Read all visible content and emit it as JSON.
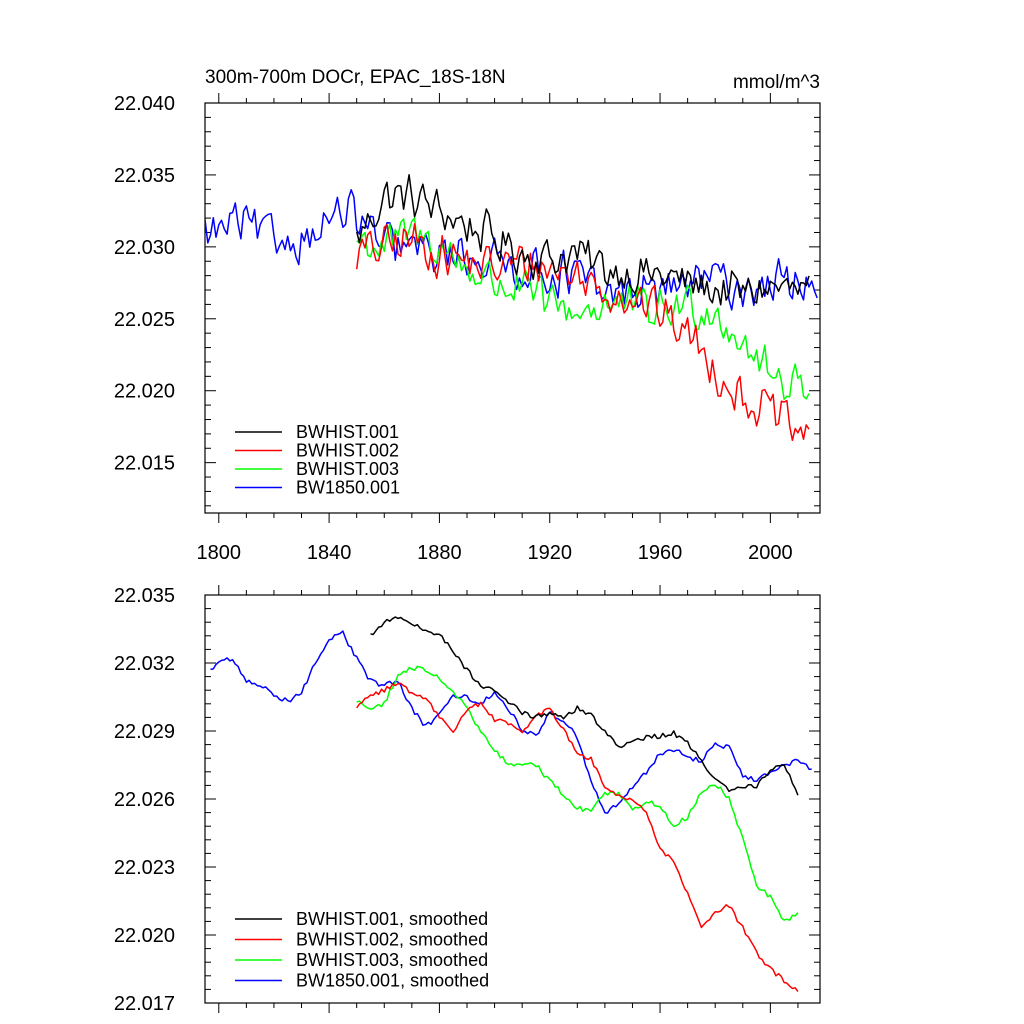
{
  "chart_data": [
    {
      "type": "line",
      "title_left": "300m-700m DOCr, EPAC_18S-18N",
      "title_right": "mmol/m^3",
      "xlim": [
        1795,
        2018
      ],
      "ylim": [
        22.0115,
        22.04
      ],
      "xticks": [
        1800,
        1840,
        1880,
        1920,
        1960,
        2000
      ],
      "yticks": [
        "22.040",
        "22.035",
        "22.030",
        "22.025",
        "22.020",
        "22.015"
      ],
      "legend_position": "lower-left",
      "series": [
        {
          "name": "BWHIST.001",
          "color": "#000000",
          "x_start": 1850,
          "x_end": 2014,
          "points": [
            [
              1850,
              22.0305
            ],
            [
              1860,
              22.0335
            ],
            [
              1870,
              22.0335
            ],
            [
              1880,
              22.0325
            ],
            [
              1890,
              22.0315
            ],
            [
              1900,
              22.0305
            ],
            [
              1910,
              22.0295
            ],
            [
              1920,
              22.0292
            ],
            [
              1930,
              22.0295
            ],
            [
              1940,
              22.0285
            ],
            [
              1950,
              22.0282
            ],
            [
              1960,
              22.028
            ],
            [
              1970,
              22.0275
            ],
            [
              1980,
              22.027
            ],
            [
              1990,
              22.0268
            ],
            [
              2000,
              22.0272
            ],
            [
              2014,
              22.0268
            ]
          ]
        },
        {
          "name": "BWHIST.002",
          "color": "#ff0000",
          "x_start": 1850,
          "x_end": 2014,
          "points": [
            [
              1850,
              22.0295
            ],
            [
              1860,
              22.03
            ],
            [
              1870,
              22.0305
            ],
            [
              1880,
              22.0295
            ],
            [
              1890,
              22.029
            ],
            [
              1900,
              22.0285
            ],
            [
              1910,
              22.029
            ],
            [
              1920,
              22.0285
            ],
            [
              1930,
              22.028
            ],
            [
              1940,
              22.027
            ],
            [
              1950,
              22.0265
            ],
            [
              1960,
              22.0255
            ],
            [
              1970,
              22.024
            ],
            [
              1980,
              22.0215
            ],
            [
              1990,
              22.0195
            ],
            [
              2000,
              22.0185
            ],
            [
              2014,
              22.0165
            ]
          ]
        },
        {
          "name": "BWHIST.003",
          "color": "#00ff00",
          "x_start": 1850,
          "x_end": 2014,
          "points": [
            [
              1850,
              22.0305
            ],
            [
              1860,
              22.03
            ],
            [
              1870,
              22.031
            ],
            [
              1880,
              22.03
            ],
            [
              1890,
              22.0285
            ],
            [
              1900,
              22.0275
            ],
            [
              1910,
              22.027
            ],
            [
              1920,
              22.026
            ],
            [
              1930,
              22.0255
            ],
            [
              1940,
              22.026
            ],
            [
              1950,
              22.0258
            ],
            [
              1960,
              22.0255
            ],
            [
              1970,
              22.026
            ],
            [
              1980,
              22.0255
            ],
            [
              1990,
              22.0235
            ],
            [
              2000,
              22.021
            ],
            [
              2014,
              22.0205
            ]
          ]
        },
        {
          "name": "BW1850.001",
          "color": "#0000ff",
          "x_start": 1795,
          "x_end": 2017,
          "points": [
            [
              1795,
              22.031
            ],
            [
              1800,
              22.031
            ],
            [
              1805,
              22.0318
            ],
            [
              1810,
              22.0315
            ],
            [
              1820,
              22.0305
            ],
            [
              1830,
              22.0305
            ],
            [
              1840,
              22.0318
            ],
            [
              1845,
              22.0325
            ],
            [
              1850,
              22.032
            ],
            [
              1860,
              22.03
            ],
            [
              1870,
              22.03
            ],
            [
              1880,
              22.0295
            ],
            [
              1890,
              22.0295
            ],
            [
              1900,
              22.029
            ],
            [
              1910,
              22.0285
            ],
            [
              1920,
              22.0282
            ],
            [
              1930,
              22.028
            ],
            [
              1940,
              22.0265
            ],
            [
              1950,
              22.027
            ],
            [
              1960,
              22.027
            ],
            [
              1970,
              22.0275
            ],
            [
              1980,
              22.0278
            ],
            [
              1990,
              22.027
            ],
            [
              2000,
              22.0275
            ],
            [
              2017,
              22.0275
            ]
          ]
        }
      ]
    },
    {
      "type": "line",
      "xlim": [
        1795,
        2018
      ],
      "ylim": [
        22.017,
        22.035
      ],
      "xticks": [
        1800,
        1840,
        1880,
        1920,
        1960,
        2000
      ],
      "yticks": [
        "22.035",
        "22.032",
        "22.029",
        "22.026",
        "22.023",
        "22.020",
        "22.017"
      ],
      "legend_position": "lower-left",
      "series": [
        {
          "name": "BWHIST.001, smoothed",
          "color": "#000000",
          "points": [
            [
              1855,
              22.0332
            ],
            [
              1860,
              22.0338
            ],
            [
              1865,
              22.034
            ],
            [
              1870,
              22.0337
            ],
            [
              1875,
              22.0334
            ],
            [
              1880,
              22.0333
            ],
            [
              1885,
              22.0325
            ],
            [
              1890,
              22.0317
            ],
            [
              1895,
              22.031
            ],
            [
              1900,
              22.0308
            ],
            [
              1905,
              22.0303
            ],
            [
              1910,
              22.0298
            ],
            [
              1915,
              22.0296
            ],
            [
              1920,
              22.0298
            ],
            [
              1925,
              22.0296
            ],
            [
              1930,
              22.03
            ],
            [
              1935,
              22.0297
            ],
            [
              1940,
              22.029
            ],
            [
              1945,
              22.0283
            ],
            [
              1950,
              22.0285
            ],
            [
              1955,
              22.0287
            ],
            [
              1960,
              22.0288
            ],
            [
              1965,
              22.0289
            ],
            [
              1970,
              22.0285
            ],
            [
              1975,
              22.0277
            ],
            [
              1980,
              22.0268
            ],
            [
              1985,
              22.0264
            ],
            [
              1990,
              22.0265
            ],
            [
              1995,
              22.0266
            ],
            [
              2000,
              22.0273
            ],
            [
              2005,
              22.0276
            ],
            [
              2010,
              22.0262
            ]
          ]
        },
        {
          "name": "BWHIST.002, smoothed",
          "color": "#ff0000",
          "points": [
            [
              1850,
              22.0301
            ],
            [
              1855,
              22.0305
            ],
            [
              1860,
              22.0308
            ],
            [
              1865,
              22.0311
            ],
            [
              1870,
              22.0307
            ],
            [
              1875,
              22.0305
            ],
            [
              1880,
              22.0296
            ],
            [
              1885,
              22.029
            ],
            [
              1890,
              22.03
            ],
            [
              1895,
              22.0302
            ],
            [
              1900,
              22.0295
            ],
            [
              1905,
              22.0293
            ],
            [
              1910,
              22.029
            ],
            [
              1915,
              22.0297
            ],
            [
              1920,
              22.03
            ],
            [
              1925,
              22.0291
            ],
            [
              1930,
              22.028
            ],
            [
              1935,
              22.0278
            ],
            [
              1940,
              22.0265
            ],
            [
              1945,
              22.0261
            ],
            [
              1950,
              22.026
            ],
            [
              1955,
              22.0255
            ],
            [
              1960,
              22.0238
            ],
            [
              1965,
              22.0232
            ],
            [
              1970,
              22.0218
            ],
            [
              1975,
              22.0203
            ],
            [
              1980,
              22.021
            ],
            [
              1985,
              22.0213
            ],
            [
              1990,
              22.0203
            ],
            [
              1995,
              22.0192
            ],
            [
              2000,
              22.0185
            ],
            [
              2005,
              22.018
            ],
            [
              2010,
              22.0175
            ]
          ]
        },
        {
          "name": "BWHIST.003, smoothed",
          "color": "#00ff00",
          "points": [
            [
              1850,
              22.0303
            ],
            [
              1855,
              22.03
            ],
            [
              1860,
              22.0302
            ],
            [
              1865,
              22.0315
            ],
            [
              1870,
              22.0318
            ],
            [
              1875,
              22.0317
            ],
            [
              1880,
              22.0313
            ],
            [
              1885,
              22.0307
            ],
            [
              1890,
              22.03
            ],
            [
              1895,
              22.029
            ],
            [
              1900,
              22.0282
            ],
            [
              1905,
              22.0275
            ],
            [
              1910,
              22.0275
            ],
            [
              1915,
              22.0275
            ],
            [
              1920,
              22.0268
            ],
            [
              1925,
              22.0262
            ],
            [
              1930,
              22.0256
            ],
            [
              1935,
              22.0254
            ],
            [
              1940,
              22.0263
            ],
            [
              1945,
              22.0262
            ],
            [
              1950,
              22.0255
            ],
            [
              1955,
              22.0259
            ],
            [
              1960,
              22.0257
            ],
            [
              1965,
              22.0248
            ],
            [
              1970,
              22.0252
            ],
            [
              1975,
              22.0263
            ],
            [
              1980,
              22.0267
            ],
            [
              1985,
              22.026
            ],
            [
              1990,
              22.0242
            ],
            [
              1995,
              22.0222
            ],
            [
              2000,
              22.0217
            ],
            [
              2005,
              22.0206
            ],
            [
              2010,
              22.021
            ]
          ]
        },
        {
          "name": "BW1850.001, smoothed",
          "color": "#0000ff",
          "points": [
            [
              1797,
              22.0317
            ],
            [
              1800,
              22.032
            ],
            [
              1805,
              22.0322
            ],
            [
              1810,
              22.0312
            ],
            [
              1815,
              22.031
            ],
            [
              1820,
              22.0306
            ],
            [
              1825,
              22.0303
            ],
            [
              1830,
              22.0307
            ],
            [
              1835,
              22.032
            ],
            [
              1840,
              22.0331
            ],
            [
              1845,
              22.0333
            ],
            [
              1850,
              22.0322
            ],
            [
              1855,
              22.0312
            ],
            [
              1860,
              22.031
            ],
            [
              1865,
              22.0312
            ],
            [
              1870,
              22.03
            ],
            [
              1875,
              22.0292
            ],
            [
              1880,
              22.0297
            ],
            [
              1885,
              22.0305
            ],
            [
              1890,
              22.0305
            ],
            [
              1895,
              22.0302
            ],
            [
              1900,
              22.0307
            ],
            [
              1905,
              22.03
            ],
            [
              1910,
              22.029
            ],
            [
              1915,
              22.0288
            ],
            [
              1920,
              22.0298
            ],
            [
              1925,
              22.0295
            ],
            [
              1930,
              22.0287
            ],
            [
              1935,
              22.0268
            ],
            [
              1940,
              22.0253
            ],
            [
              1945,
              22.0258
            ],
            [
              1950,
              22.0265
            ],
            [
              1955,
              22.0272
            ],
            [
              1960,
              22.028
            ],
            [
              1965,
              22.0282
            ],
            [
              1970,
              22.0278
            ],
            [
              1975,
              22.0277
            ],
            [
              1980,
              22.0284
            ],
            [
              1985,
              22.0283
            ],
            [
              1990,
              22.027
            ],
            [
              1995,
              22.0268
            ],
            [
              2000,
              22.0272
            ],
            [
              2005,
              22.0275
            ],
            [
              2010,
              22.0277
            ],
            [
              2015,
              22.0273
            ]
          ]
        }
      ]
    }
  ]
}
